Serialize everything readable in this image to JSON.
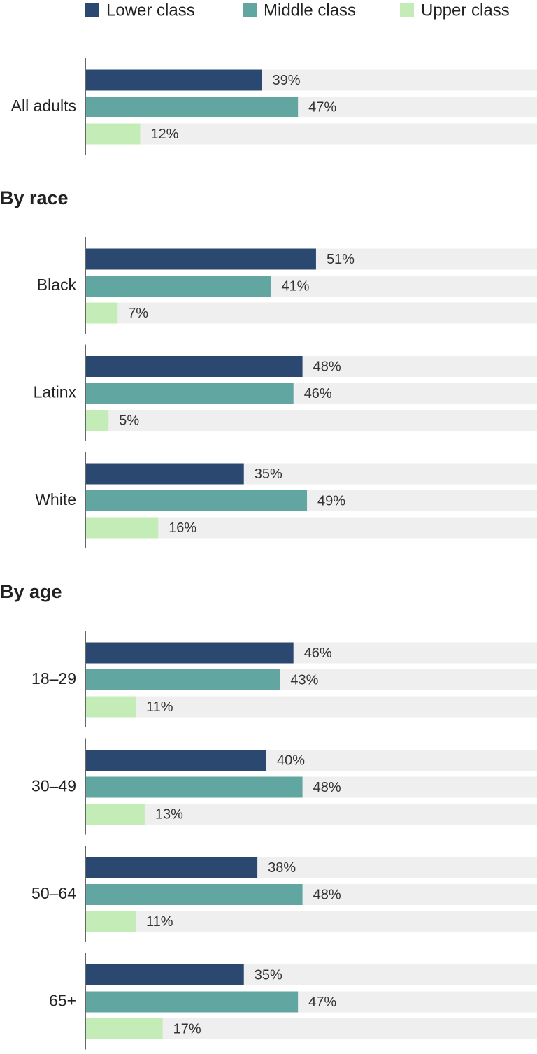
{
  "chart_data": {
    "type": "bar",
    "orientation": "horizontal",
    "xlim": [
      0,
      100
    ],
    "legend": "top",
    "series": [
      {
        "name": "Lower class",
        "color": "#2b4870"
      },
      {
        "name": "Middle class",
        "color": "#62a6a1"
      },
      {
        "name": "Upper class",
        "color": "#c3ecb7"
      }
    ],
    "sections": [
      {
        "categories": [
          "All adults"
        ],
        "values": [
          [
            39,
            47,
            12
          ]
        ],
        "value_labels": [
          [
            "39%",
            "47%",
            "12%"
          ]
        ]
      },
      {
        "title": "By race",
        "categories": [
          "Black",
          "Latinx",
          "White"
        ],
        "values": [
          [
            51,
            41,
            7
          ],
          [
            48,
            46,
            5
          ],
          [
            35,
            49,
            16
          ]
        ],
        "value_labels": [
          [
            "51%",
            "41%",
            "7%"
          ],
          [
            "48%",
            "46%",
            "5%"
          ],
          [
            "35%",
            "49%",
            "16%"
          ]
        ]
      },
      {
        "title": "By age",
        "categories": [
          "18–29",
          "30–49",
          "50–64",
          "65+"
        ],
        "values": [
          [
            46,
            43,
            11
          ],
          [
            40,
            48,
            13
          ],
          [
            38,
            48,
            11
          ],
          [
            35,
            47,
            17
          ]
        ],
        "value_labels": [
          [
            "46%",
            "43%",
            "11%"
          ],
          [
            "40%",
            "48%",
            "13%"
          ],
          [
            "38%",
            "48%",
            "11%"
          ],
          [
            "35%",
            "47%",
            "17%"
          ]
        ]
      }
    ]
  }
}
